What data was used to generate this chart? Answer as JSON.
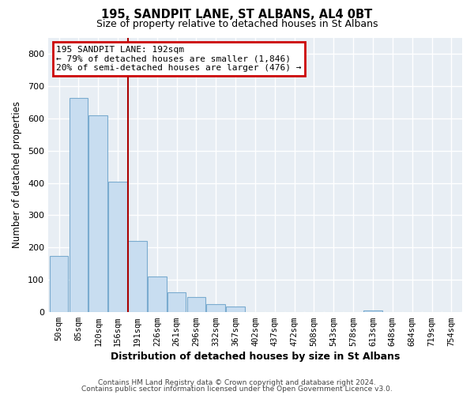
{
  "title": "195, SANDPIT LANE, ST ALBANS, AL4 0BT",
  "subtitle": "Size of property relative to detached houses in St Albans",
  "bar_labels": [
    "50sqm",
    "85sqm",
    "120sqm",
    "156sqm",
    "191sqm",
    "226sqm",
    "261sqm",
    "296sqm",
    "332sqm",
    "367sqm",
    "402sqm",
    "437sqm",
    "472sqm",
    "508sqm",
    "543sqm",
    "578sqm",
    "613sqm",
    "648sqm",
    "684sqm",
    "719sqm",
    "754sqm"
  ],
  "bar_values": [
    175,
    663,
    610,
    403,
    220,
    110,
    62,
    47,
    25,
    18,
    0,
    0,
    0,
    0,
    0,
    0,
    5,
    0,
    0,
    0,
    0
  ],
  "bar_color": "#c8ddf0",
  "bar_edge_color": "#7aabcf",
  "vline_position": 4,
  "vline_color": "#aa0000",
  "annotation_title": "195 SANDPIT LANE: 192sqm",
  "annotation_line1": "← 79% of detached houses are smaller (1,846)",
  "annotation_line2": "20% of semi-detached houses are larger (476) →",
  "annotation_box_edgecolor": "#cc0000",
  "xlabel": "Distribution of detached houses by size in St Albans",
  "ylabel": "Number of detached properties",
  "ylim": [
    0,
    850
  ],
  "yticks": [
    0,
    100,
    200,
    300,
    400,
    500,
    600,
    700,
    800
  ],
  "plot_bg_color": "#e8eef4",
  "fig_bg_color": "#ffffff",
  "grid_color": "#ffffff",
  "footer1": "Contains HM Land Registry data © Crown copyright and database right 2024.",
  "footer2": "Contains public sector information licensed under the Open Government Licence v3.0."
}
